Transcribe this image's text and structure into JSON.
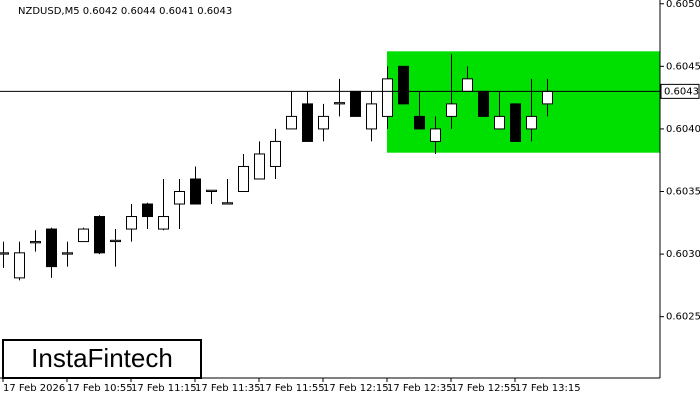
{
  "chart_data": {
    "type": "candlestick",
    "title": "NZDUSD,M5  0.6042 0.6044 0.6041 0.6043",
    "watermark": "InstaFintech",
    "categories": [
      "17 Feb 2026",
      null,
      null,
      null,
      "17 Feb 10:55",
      null,
      null,
      null,
      "17 Feb 11:15",
      null,
      null,
      null,
      "17 Feb 11:35",
      null,
      null,
      null,
      "17 Feb 11:55",
      null,
      null,
      null,
      "17 Feb 12:15",
      null,
      null,
      null,
      "17 Feb 12:35",
      null,
      null,
      null,
      "17 Feb 12:55",
      null,
      null,
      null,
      "17 Feb 13:15",
      null,
      null
    ],
    "open": [
      0.603,
      0.60281,
      0.60309,
      0.6032,
      0.603,
      0.6031,
      0.6033,
      0.6031,
      0.6032,
      0.6034,
      0.6032,
      0.6034,
      0.6036,
      0.6035,
      0.6034,
      0.6035,
      0.6036,
      0.6037,
      0.604,
      0.6042,
      0.604,
      0.6042,
      0.6043,
      0.604,
      0.6041,
      0.6045,
      0.6041,
      0.6039,
      0.6041,
      0.6043,
      0.6043,
      0.604,
      0.6042,
      0.604,
      0.6042
    ],
    "high": [
      0.6031,
      0.6031,
      0.60319,
      0.60321,
      0.6031,
      0.60321,
      0.60331,
      0.6032,
      0.6034,
      0.60341,
      0.6036,
      0.6036,
      0.6037,
      0.6035,
      0.6036,
      0.6038,
      0.6039,
      0.604,
      0.6043,
      0.6043,
      0.6042,
      0.6044,
      0.6043,
      0.6043,
      0.6045,
      0.6045,
      0.6043,
      0.6041,
      0.6046,
      0.6045,
      0.6043,
      0.6043,
      0.6042,
      0.6044,
      0.6044
    ],
    "low": [
      0.60289,
      0.60279,
      0.60302,
      0.60281,
      0.6029,
      0.6031,
      0.603,
      0.6029,
      0.6031,
      0.6032,
      0.60319,
      0.6032,
      0.6034,
      0.6034,
      0.6034,
      0.6035,
      0.6036,
      0.6036,
      0.604,
      0.6039,
      0.6039,
      0.6041,
      0.6041,
      0.6039,
      0.604,
      0.6042,
      0.604,
      0.6038,
      0.604,
      0.6043,
      0.6041,
      0.604,
      0.6039,
      0.6039,
      0.6041
    ],
    "close": [
      0.60301,
      0.60301,
      0.6031,
      0.6029,
      0.60301,
      0.6032,
      0.60301,
      0.60311,
      0.6033,
      0.6033,
      0.6033,
      0.6035,
      0.6034,
      0.60351,
      0.60341,
      0.6037,
      0.6038,
      0.6039,
      0.6041,
      0.6039,
      0.6041,
      0.60421,
      0.6041,
      0.6042,
      0.6044,
      0.6042,
      0.604,
      0.604,
      0.6042,
      0.6044,
      0.6041,
      0.6041,
      0.6039,
      0.6041,
      0.6043
    ],
    "up_color": "#ffffff",
    "down_color": "#000000",
    "last_price": 0.6043,
    "zone": {
      "top": 0.60462,
      "bottom": 0.60381,
      "start": 24,
      "color": "#00e000"
    },
    "ylim": [
      0.60201,
      0.60503
    ],
    "yticks": [
      0.6025,
      {
        "value": 0.603,
        "label": "0.6030"
      },
      0.6035,
      {
        "value": 0.604,
        "label": "0.6040"
      },
      0.6045,
      {
        "value": 0.605,
        "label": "0.6050"
      }
    ]
  }
}
